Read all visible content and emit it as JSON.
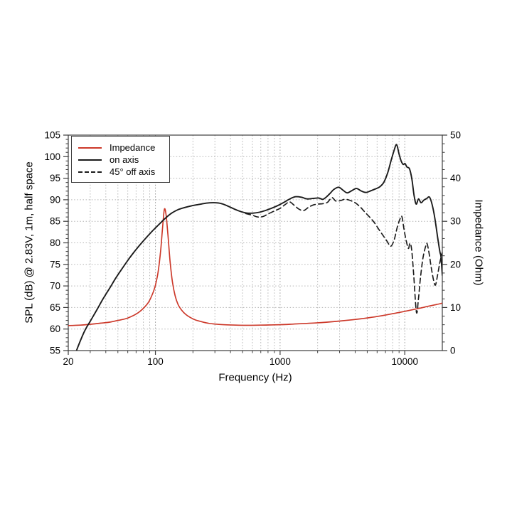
{
  "figure": {
    "background": "#ffffff"
  },
  "colors": {
    "axis": "#3c3c3c",
    "grid_minor": "#b4b4b4",
    "grid_major": "#979797",
    "text": "#000000",
    "impedance_red": "#cc3829",
    "curve_black": "#1b1b1b"
  },
  "chart_data": {
    "type": "line",
    "title": "",
    "grid": true,
    "legend_position": "top-left",
    "x_axis": {
      "label": "Frequency (Hz)",
      "scale": "log",
      "min": 20,
      "max": 20000,
      "major_ticks": [
        20,
        100,
        1000,
        10000
      ],
      "major_tick_labels": [
        "20",
        "100",
        "1000",
        "10000"
      ]
    },
    "y_axis_left": {
      "label": "SPL (dB) @ 2.83V, 1m, half space",
      "min": 55,
      "max": 105,
      "major_tick_step": 5,
      "minor_tick_step": 1,
      "major_ticks": [
        55,
        60,
        65,
        70,
        75,
        80,
        85,
        90,
        95,
        100,
        105
      ]
    },
    "y_axis_right": {
      "label": "Impedance (Ohm)",
      "min": 0,
      "max": 50,
      "major_tick_step": 10,
      "minor_tick_step": 2,
      "major_ticks": [
        0,
        10,
        20,
        30,
        40,
        50
      ]
    },
    "series": [
      {
        "name": "Impedance",
        "axis": "right",
        "units": "Ohm",
        "color": "#cc3829",
        "style": "solid",
        "points": [
          [
            20,
            5.8
          ],
          [
            25,
            5.9
          ],
          [
            30,
            6.1
          ],
          [
            36,
            6.35
          ],
          [
            43,
            6.6
          ],
          [
            50,
            7.0
          ],
          [
            57,
            7.35
          ],
          [
            64,
            7.9
          ],
          [
            72,
            8.7
          ],
          [
            80,
            9.8
          ],
          [
            88,
            11.2
          ],
          [
            95,
            13.2
          ],
          [
            100,
            15.2
          ],
          [
            105,
            18.2
          ],
          [
            110,
            23.0
          ],
          [
            114,
            28.3
          ],
          [
            118,
            32.8
          ],
          [
            122,
            31.3
          ],
          [
            126,
            26.8
          ],
          [
            131,
            20.8
          ],
          [
            137,
            15.9
          ],
          [
            144,
            12.7
          ],
          [
            152,
            10.7
          ],
          [
            162,
            9.4
          ],
          [
            175,
            8.4
          ],
          [
            190,
            7.7
          ],
          [
            210,
            7.1
          ],
          [
            235,
            6.7
          ],
          [
            265,
            6.35
          ],
          [
            300,
            6.15
          ],
          [
            350,
            6.0
          ],
          [
            420,
            5.92
          ],
          [
            500,
            5.88
          ],
          [
            600,
            5.88
          ],
          [
            700,
            5.9
          ],
          [
            850,
            5.95
          ],
          [
            1000,
            6.0
          ],
          [
            1200,
            6.1
          ],
          [
            1500,
            6.25
          ],
          [
            1900,
            6.4
          ],
          [
            2400,
            6.6
          ],
          [
            3000,
            6.85
          ],
          [
            3800,
            7.15
          ],
          [
            4800,
            7.5
          ],
          [
            6000,
            7.9
          ],
          [
            7500,
            8.4
          ],
          [
            9000,
            8.85
          ],
          [
            11000,
            9.35
          ],
          [
            13000,
            9.8
          ],
          [
            15500,
            10.3
          ],
          [
            18000,
            10.7
          ],
          [
            20000,
            11.0
          ]
        ]
      },
      {
        "name": "on axis",
        "axis": "left",
        "units": "dB",
        "color": "#1b1b1b",
        "style": "solid",
        "points": [
          [
            22,
            53
          ],
          [
            24,
            56
          ],
          [
            27,
            59.5
          ],
          [
            30,
            61.8
          ],
          [
            34,
            64.5
          ],
          [
            38,
            67
          ],
          [
            43,
            69.5
          ],
          [
            48,
            71.8
          ],
          [
            54,
            74
          ],
          [
            61,
            76.2
          ],
          [
            68,
            78
          ],
          [
            76,
            79.7
          ],
          [
            85,
            81.3
          ],
          [
            95,
            82.8
          ],
          [
            107,
            84.3
          ],
          [
            120,
            85.7
          ],
          [
            135,
            86.9
          ],
          [
            152,
            87.7
          ],
          [
            172,
            88.2
          ],
          [
            195,
            88.6
          ],
          [
            222,
            88.9
          ],
          [
            255,
            89.2
          ],
          [
            295,
            89.3
          ],
          [
            340,
            89.1
          ],
          [
            390,
            88.4
          ],
          [
            440,
            87.7
          ],
          [
            490,
            87.2
          ],
          [
            545,
            86.9
          ],
          [
            610,
            86.9
          ],
          [
            680,
            87.1
          ],
          [
            760,
            87.5
          ],
          [
            850,
            88.0
          ],
          [
            950,
            88.6
          ],
          [
            1060,
            89.3
          ],
          [
            1180,
            90.1
          ],
          [
            1320,
            90.7
          ],
          [
            1480,
            90.6
          ],
          [
            1640,
            90.2
          ],
          [
            1830,
            90.3
          ],
          [
            2040,
            90.4
          ],
          [
            2200,
            90.1
          ],
          [
            2360,
            90.7
          ],
          [
            2520,
            91.5
          ],
          [
            2700,
            92.4
          ],
          [
            2950,
            92.9
          ],
          [
            3200,
            92.2
          ],
          [
            3450,
            91.6
          ],
          [
            3750,
            92.1
          ],
          [
            4100,
            92.6
          ],
          [
            4500,
            92.0
          ],
          [
            4900,
            91.7
          ],
          [
            5350,
            92.1
          ],
          [
            5800,
            92.5
          ],
          [
            6300,
            93.0
          ],
          [
            6800,
            94.1
          ],
          [
            7300,
            96.3
          ],
          [
            7800,
            99.3
          ],
          [
            8200,
            101.4
          ],
          [
            8600,
            102.8
          ],
          [
            9000,
            100.6
          ],
          [
            9350,
            99.0
          ],
          [
            9700,
            98.2
          ],
          [
            10050,
            98.4
          ],
          [
            10400,
            97.6
          ],
          [
            10900,
            97.2
          ],
          [
            11400,
            94.8
          ],
          [
            11900,
            90.8
          ],
          [
            12350,
            89.0
          ],
          [
            12900,
            90.2
          ],
          [
            13500,
            89.3
          ],
          [
            14200,
            89.9
          ],
          [
            15000,
            90.3
          ],
          [
            15800,
            90.6
          ],
          [
            16600,
            88.8
          ],
          [
            17400,
            85.8
          ],
          [
            18300,
            81.5
          ],
          [
            19100,
            78.0
          ],
          [
            19500,
            76.8
          ],
          [
            20000,
            72.5
          ]
        ]
      },
      {
        "name": "45° off axis",
        "axis": "left",
        "units": "dB",
        "color": "#1b1b1b",
        "style": "dashed",
        "points": [
          [
            530,
            86.8
          ],
          [
            600,
            86.4
          ],
          [
            660,
            86.0
          ],
          [
            730,
            86.1
          ],
          [
            800,
            86.7
          ],
          [
            900,
            87.4
          ],
          [
            1000,
            88.0
          ],
          [
            1100,
            88.9
          ],
          [
            1190,
            89.5
          ],
          [
            1300,
            88.7
          ],
          [
            1420,
            87.8
          ],
          [
            1550,
            87.5
          ],
          [
            1700,
            88.3
          ],
          [
            1850,
            88.8
          ],
          [
            2020,
            89.0
          ],
          [
            2200,
            89.1
          ],
          [
            2400,
            89.4
          ],
          [
            2600,
            90.5
          ],
          [
            2800,
            89.7
          ],
          [
            3050,
            89.8
          ],
          [
            3300,
            90.1
          ],
          [
            3600,
            89.9
          ],
          [
            4000,
            89.3
          ],
          [
            4400,
            88.3
          ],
          [
            4800,
            87.1
          ],
          [
            5250,
            85.9
          ],
          [
            5700,
            84.7
          ],
          [
            6200,
            83.1
          ],
          [
            6700,
            81.7
          ],
          [
            7200,
            80.4
          ],
          [
            7700,
            79.2
          ],
          [
            8200,
            80.6
          ],
          [
            8700,
            83.6
          ],
          [
            9200,
            85.7
          ],
          [
            9500,
            86.0
          ],
          [
            9900,
            82.8
          ],
          [
            10300,
            80.3
          ],
          [
            10700,
            78.7
          ],
          [
            11000,
            79.9
          ],
          [
            11350,
            78.4
          ],
          [
            11800,
            72.5
          ],
          [
            12400,
            63.9
          ],
          [
            12850,
            66.8
          ],
          [
            13350,
            71.8
          ],
          [
            14000,
            76.5
          ],
          [
            14700,
            79.2
          ],
          [
            15100,
            79.8
          ],
          [
            15700,
            77.4
          ],
          [
            16300,
            74.3
          ],
          [
            17000,
            71.4
          ],
          [
            17600,
            70.2
          ],
          [
            18300,
            72.4
          ],
          [
            19100,
            75.4
          ],
          [
            20000,
            77.8
          ]
        ]
      }
    ]
  }
}
